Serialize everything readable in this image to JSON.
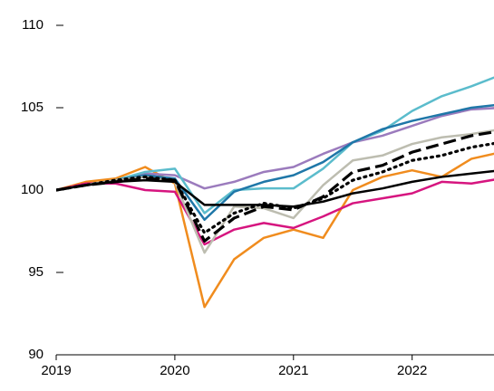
{
  "chart_data": {
    "type": "line",
    "x": [
      2019,
      2019.25,
      2019.5,
      2019.75,
      2020,
      2020.25,
      2020.5,
      2020.75,
      2021,
      2021.25,
      2021.5,
      2021.75,
      2022,
      2022.25,
      2022.5,
      2022.75
    ],
    "xlim": [
      2019,
      2022.69
    ],
    "xticks": [
      2019,
      2020,
      2021,
      2022
    ],
    "ylim": [
      90,
      110
    ],
    "yticks": [
      90,
      95,
      100,
      105,
      110
    ],
    "series": [
      {
        "color": "#f08c1e",
        "style": "solid",
        "values": [
          100,
          100.5,
          100.7,
          101.4,
          100.4,
          92.9,
          95.8,
          97.1,
          97.6,
          97.1,
          100.0,
          100.8,
          101.2,
          100.8,
          101.9,
          102.3
        ]
      },
      {
        "color": "#d6157f",
        "style": "solid",
        "values": [
          100,
          100.4,
          100.4,
          100.0,
          99.9,
          96.7,
          97.6,
          98.0,
          97.7,
          98.4,
          99.2,
          99.5,
          99.8,
          100.5,
          100.4,
          100.7
        ]
      },
      {
        "color": "#9b7bbd",
        "style": "solid",
        "values": [
          100,
          100.3,
          100.5,
          101.0,
          100.9,
          100.1,
          100.5,
          101.1,
          101.4,
          102.2,
          102.9,
          103.3,
          103.9,
          104.5,
          104.9,
          105.0
        ]
      },
      {
        "color": "#5bbccc",
        "style": "solid",
        "values": [
          100,
          100.3,
          100.6,
          101.1,
          101.3,
          98.6,
          100.0,
          100.1,
          100.1,
          101.3,
          102.9,
          103.6,
          104.8,
          105.7,
          106.3,
          107.0
        ]
      },
      {
        "color": "#1f77a8",
        "style": "solid",
        "values": [
          100,
          100.3,
          100.6,
          100.9,
          100.7,
          98.2,
          99.9,
          100.5,
          100.9,
          101.7,
          102.9,
          103.7,
          104.2,
          104.6,
          105.0,
          105.2
        ]
      },
      {
        "color": "#bdbdb0",
        "style": "solid",
        "values": [
          100,
          100.3,
          100.6,
          100.8,
          100.5,
          96.2,
          99.0,
          98.9,
          98.3,
          100.3,
          101.8,
          102.1,
          102.8,
          103.2,
          103.4,
          103.7
        ]
      },
      {
        "color": "#000000",
        "style": "solid",
        "values": [
          100,
          100.3,
          100.5,
          100.6,
          100.5,
          99.1,
          99.1,
          99.1,
          99.0,
          99.3,
          99.8,
          100.1,
          100.5,
          100.8,
          101.0,
          101.2
        ]
      },
      {
        "color": "#000000",
        "style": "dashed",
        "values": [
          100,
          100.3,
          100.5,
          100.7,
          100.6,
          96.9,
          98.3,
          99.0,
          98.8,
          99.6,
          101.1,
          101.5,
          102.3,
          102.8,
          103.3,
          103.6
        ]
      },
      {
        "color": "#000000",
        "style": "dotted",
        "values": [
          100,
          100.3,
          100.6,
          100.8,
          100.6,
          97.4,
          98.6,
          99.2,
          98.9,
          99.5,
          100.6,
          101.1,
          101.8,
          102.1,
          102.6,
          102.9
        ]
      }
    ]
  }
}
